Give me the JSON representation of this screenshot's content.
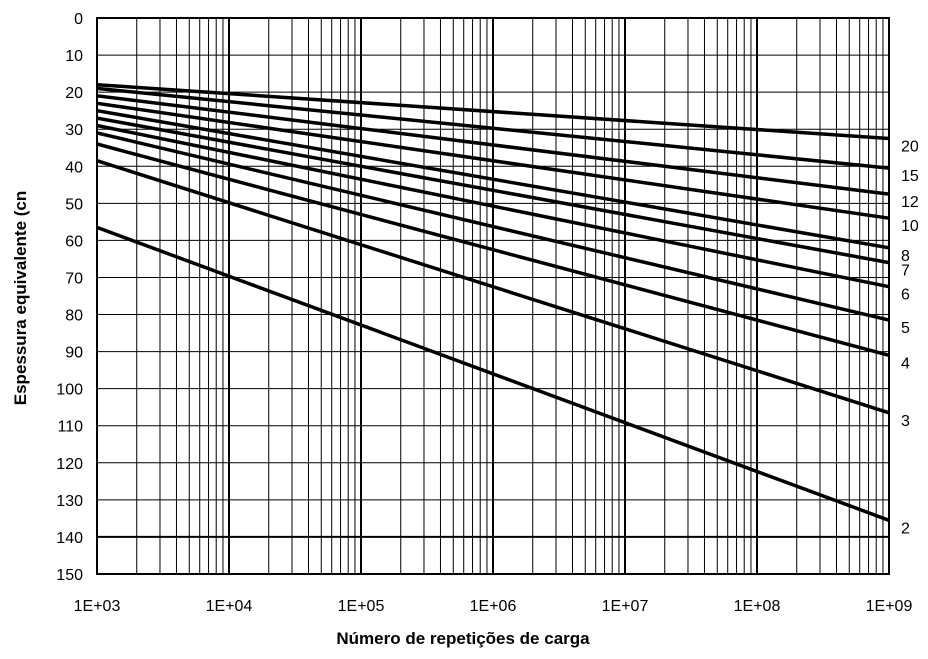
{
  "chart_data": {
    "type": "line",
    "title": "",
    "xlabel": "Número de repetições de carga",
    "ylabel": "Espessura equivalente (cn",
    "x_scale": "log",
    "xlim": [
      1000,
      1000000000
    ],
    "ylim": [
      0,
      150
    ],
    "y_inverted": true,
    "grid": true,
    "x_ticks": [
      1000,
      10000,
      100000,
      1000000,
      10000000,
      100000000,
      1000000000
    ],
    "x_tick_labels": [
      "1E+03",
      "1E+04",
      "1E+05",
      "1E+06",
      "1E+07",
      "1E+08",
      "1E+09"
    ],
    "y_ticks": [
      0,
      10,
      20,
      30,
      40,
      50,
      60,
      70,
      80,
      90,
      100,
      110,
      120,
      130,
      140,
      150
    ],
    "y_tick_labels": [
      "0",
      "10",
      "20",
      "30",
      "40",
      "50",
      "60",
      "70",
      "80",
      "90",
      "100",
      "110",
      "120",
      "130",
      "140",
      "150"
    ],
    "line_color": "#000000",
    "series": [
      {
        "name": "20",
        "x": [
          1000,
          1000000000
        ],
        "y": [
          18,
          32.5
        ]
      },
      {
        "name": "15",
        "x": [
          1000,
          1000000000
        ],
        "y": [
          19,
          40.5
        ]
      },
      {
        "name": "12",
        "x": [
          1000,
          1000000000
        ],
        "y": [
          21,
          47.5
        ]
      },
      {
        "name": "10",
        "x": [
          1000,
          1000000000
        ],
        "y": [
          23,
          54
        ]
      },
      {
        "name": "8",
        "x": [
          1000,
          1000000000
        ],
        "y": [
          25,
          62
        ]
      },
      {
        "name": "7",
        "x": [
          1000,
          1000000000
        ],
        "y": [
          27,
          66
        ]
      },
      {
        "name": "6",
        "x": [
          1000,
          1000000000
        ],
        "y": [
          29,
          72.5
        ]
      },
      {
        "name": "5",
        "x": [
          1000,
          1000000000
        ],
        "y": [
          31,
          81.5
        ]
      },
      {
        "name": "4",
        "x": [
          1000,
          1000000000
        ],
        "y": [
          34,
          91
        ]
      },
      {
        "name": "3",
        "x": [
          1000,
          1000000000
        ],
        "y": [
          38.5,
          106.5
        ]
      },
      {
        "name": "2",
        "x": [
          1000,
          1000000000
        ],
        "y": [
          56.5,
          135.5
        ]
      }
    ]
  }
}
